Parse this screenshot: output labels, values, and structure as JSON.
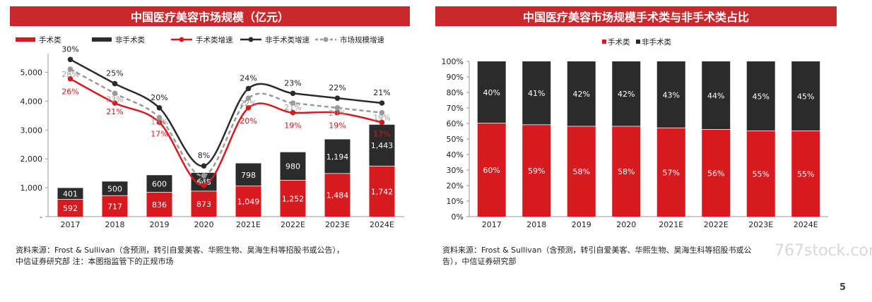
{
  "page": {
    "left_title": "中国医疗美容市场规模（亿元）",
    "right_title": "中国医疗美容市场规模手术类与非手术类占比",
    "left_note_line1": "资料来源：Frost & Sullivan（含预测，转引自爱美客、华熙生物、昊海生科等招股书或公告），",
    "left_note_line2": "中信证券研究部   注：本图指监管下的正规市场",
    "right_note_line1": "资料来源：Frost & Sullivan（含预测，转引自爱美客、华熙生物、昊海生科等招股书或公",
    "right_note_line2": "告），中信证券研究部",
    "watermark": "767stock.com",
    "page_number": "5"
  },
  "colors": {
    "red": "#d71920",
    "dark": "#2b2b2b",
    "gray": "#9a9a9a",
    "title_bg": "#c9292c"
  },
  "chart_data": [
    {
      "type": "bar",
      "stacked": true,
      "title": "中国医疗美容市场规模（亿元）",
      "categories": [
        "2017",
        "2018",
        "2019",
        "2020",
        "2021E",
        "2022E",
        "2023E",
        "2024E"
      ],
      "series": [
        {
          "name": "手术类",
          "values": [
            592,
            717,
            836,
            873,
            1049,
            1252,
            1484,
            1742
          ],
          "labels": [
            "592",
            "717",
            "836",
            "873",
            "1,049",
            "1,252",
            "1,484",
            "1,742"
          ]
        },
        {
          "name": "非手术类",
          "values": [
            401,
            500,
            600,
            645,
            798,
            980,
            1194,
            1443
          ],
          "labels": [
            "401",
            "500",
            "600",
            "645",
            "798",
            "980",
            "1,194",
            "1,443"
          ]
        }
      ],
      "lines": [
        {
          "name": "手术类增速",
          "values": [
            26,
            21,
            17,
            4,
            20,
            19,
            19,
            17
          ],
          "labels": [
            "26%",
            "21%",
            "17%",
            "4%",
            "20%",
            "19%",
            "19%",
            "17%"
          ]
        },
        {
          "name": "非手术类增速",
          "values": [
            30,
            25,
            20,
            8,
            24,
            23,
            22,
            21
          ],
          "labels": [
            "30%",
            "25%",
            "20%",
            "8%",
            "24%",
            "23%",
            "22%",
            "21%"
          ]
        },
        {
          "name": "市场规模增速",
          "values": [
            28,
            23,
            18,
            6,
            22,
            21,
            20,
            19
          ],
          "labels": [
            "28%",
            "23%",
            "18%",
            "6%",
            "22%",
            "21%",
            "20%",
            "19%"
          ]
        }
      ],
      "yticks": [
        "-",
        "1,000",
        "2,000",
        "3,000",
        "4,000",
        "5,000"
      ],
      "ylim": [
        0,
        5500
      ],
      "legend": [
        "手术类",
        "非手术类",
        "手术类增速",
        "非手术类增速",
        "市场规模增速"
      ],
      "legend_position": "top",
      "grid": false
    },
    {
      "type": "bar",
      "stacked": true,
      "percent": true,
      "title": "中国医疗美容市场规模手术类与非手术类占比",
      "categories": [
        "2017",
        "2018",
        "2019",
        "2020",
        "2021E",
        "2022E",
        "2023E",
        "2024E"
      ],
      "series": [
        {
          "name": "手术类",
          "values": [
            60,
            59,
            58,
            58,
            57,
            56,
            55,
            55
          ],
          "labels": [
            "60%",
            "59%",
            "58%",
            "58%",
            "57%",
            "56%",
            "55%",
            "55%"
          ]
        },
        {
          "name": "非手术类",
          "values": [
            40,
            41,
            42,
            42,
            43,
            44,
            45,
            45
          ],
          "labels": [
            "40%",
            "41%",
            "42%",
            "42%",
            "43%",
            "44%",
            "45%",
            "45%"
          ]
        }
      ],
      "yticks": [
        "0%",
        "10%",
        "20%",
        "30%",
        "40%",
        "50%",
        "60%",
        "70%",
        "80%",
        "90%",
        "100%"
      ],
      "ylim": [
        0,
        100
      ],
      "legend": [
        "手术类",
        "非手术类"
      ],
      "legend_position": "top",
      "grid": false
    }
  ]
}
